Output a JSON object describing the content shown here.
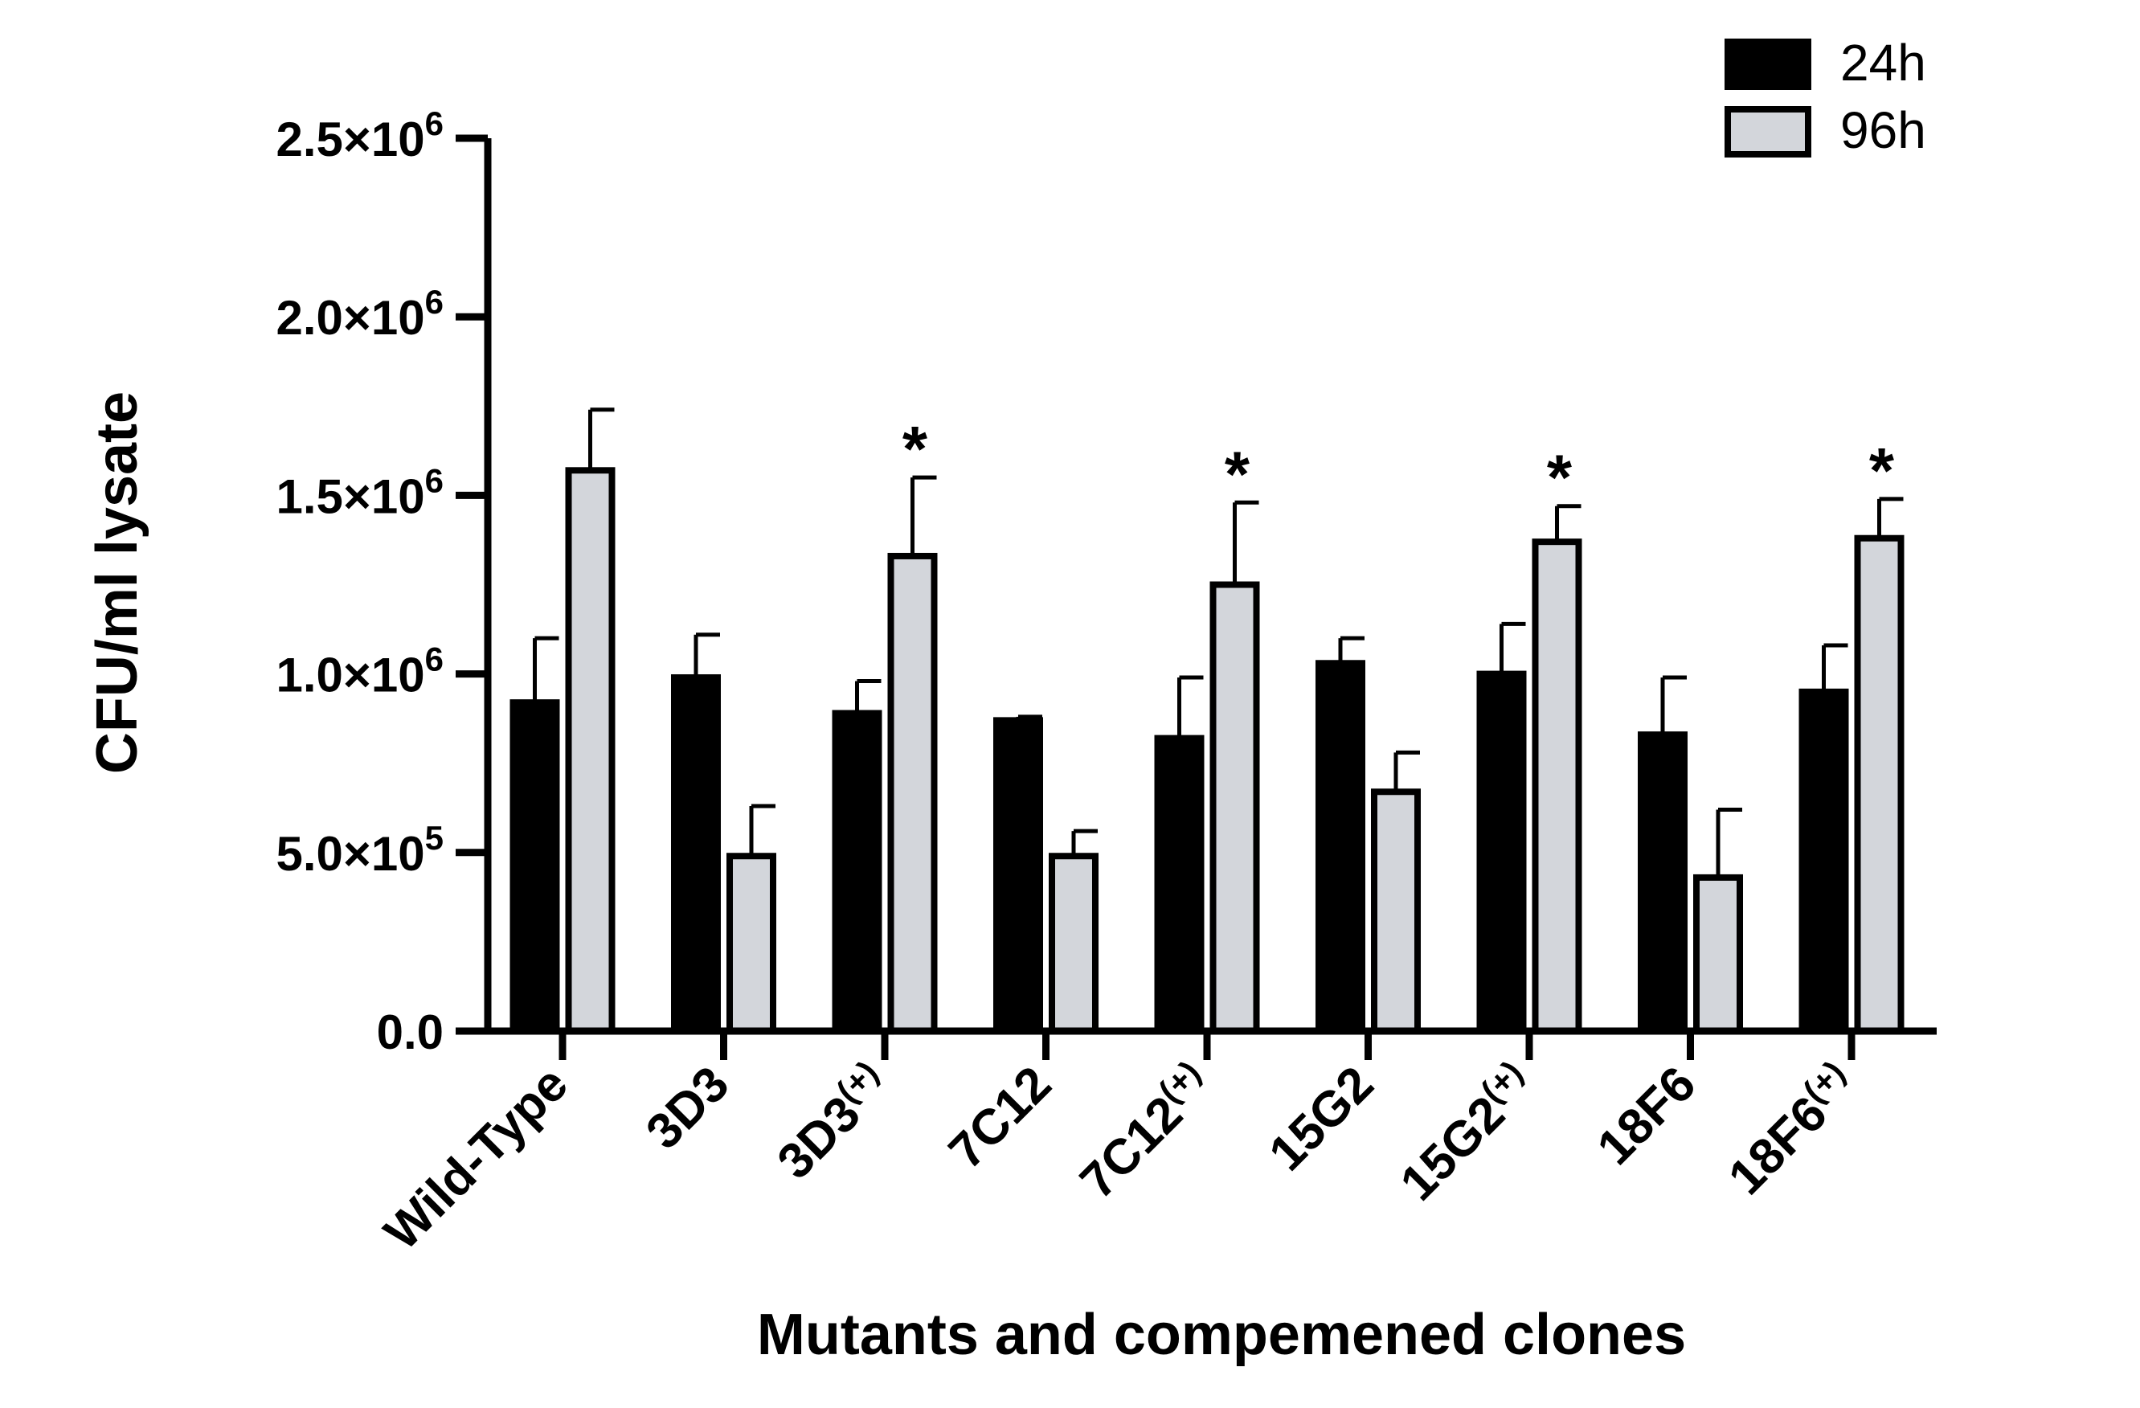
{
  "chart_data": {
    "type": "bar",
    "title": "",
    "xlabel": "Mutants and compemened clones",
    "ylabel": "CFU/ml lysate",
    "ylim": [
      0,
      2500000
    ],
    "yticks": [
      {
        "value": 0,
        "label": "0.0"
      },
      {
        "value": 500000,
        "label": "5.0×10",
        "exp": "5"
      },
      {
        "value": 1000000,
        "label": "1.0×10",
        "exp": "6"
      },
      {
        "value": 1500000,
        "label": "1.5×10",
        "exp": "6"
      },
      {
        "value": 2000000,
        "label": "2.0×10",
        "exp": "6"
      },
      {
        "value": 2500000,
        "label": "2.5×10",
        "exp": "6"
      }
    ],
    "categories": [
      {
        "base": "Wild-Type",
        "sup": ""
      },
      {
        "base": "3D3",
        "sup": ""
      },
      {
        "base": "3D3",
        "sup": "(+)"
      },
      {
        "base": "7C12",
        "sup": ""
      },
      {
        "base": "7C12",
        "sup": "(+)"
      },
      {
        "base": "15G2",
        "sup": ""
      },
      {
        "base": "15G2",
        "sup": "(+)"
      },
      {
        "base": "18F6",
        "sup": ""
      },
      {
        "base": "18F6",
        "sup": "(+)"
      }
    ],
    "series": [
      {
        "name": "24h",
        "color": "#000000",
        "values": [
          920000,
          990000,
          890000,
          870000,
          820000,
          1030000,
          1000000,
          830000,
          950000
        ],
        "errors": [
          180000,
          120000,
          90000,
          10000,
          170000,
          70000,
          140000,
          160000,
          130000
        ]
      },
      {
        "name": "96h",
        "color": "#d3d6db",
        "values": [
          1570000,
          490000,
          1330000,
          490000,
          1250000,
          670000,
          1370000,
          430000,
          1380000
        ],
        "errors": [
          170000,
          140000,
          220000,
          70000,
          230000,
          110000,
          100000,
          190000,
          110000
        ]
      }
    ],
    "annotations": [
      {
        "category_index": 2,
        "series": "96h",
        "text": "*"
      },
      {
        "category_index": 4,
        "series": "96h",
        "text": "*"
      },
      {
        "category_index": 6,
        "series": "96h",
        "text": "*"
      },
      {
        "category_index": 8,
        "series": "96h",
        "text": "*"
      }
    ],
    "legend_position": "top-right"
  }
}
